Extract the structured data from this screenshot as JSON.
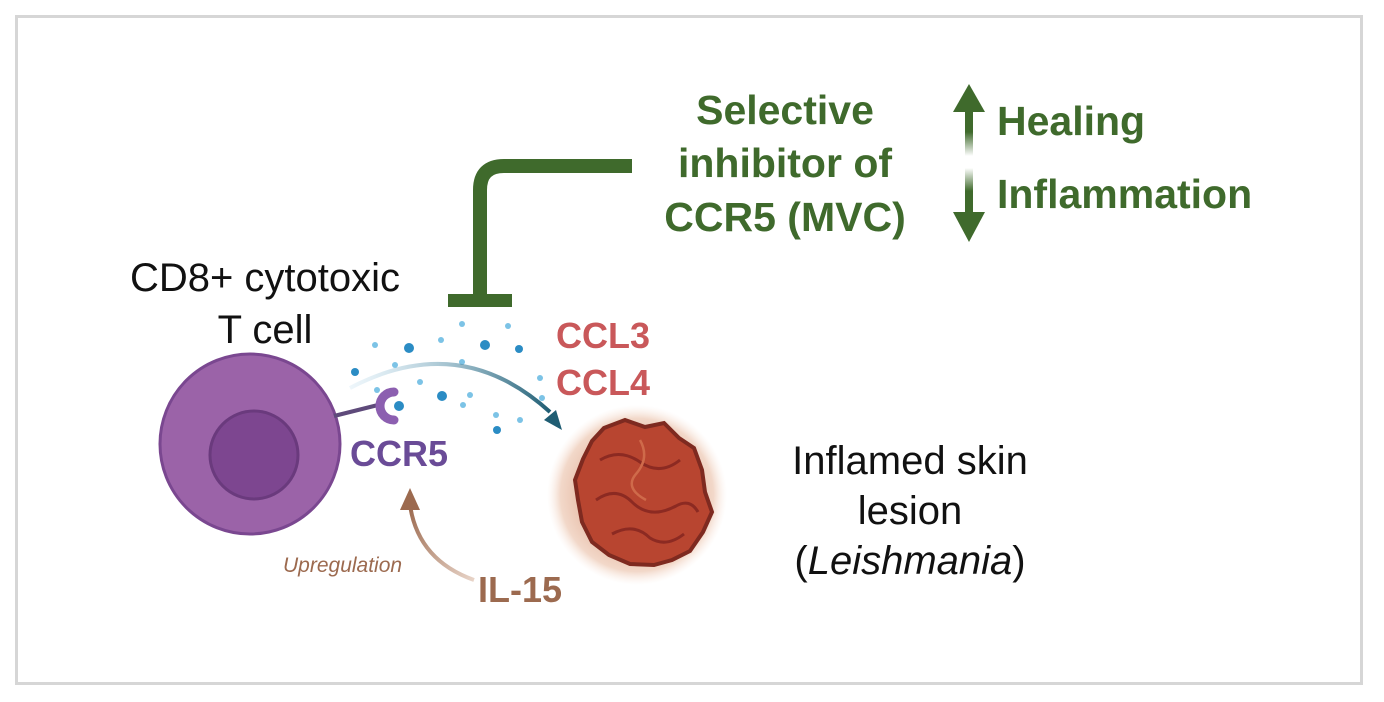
{
  "t_cell": {
    "line1": "CD8+ cytotoxic",
    "line2": "T cell"
  },
  "inhibitor": {
    "line1": "Selective",
    "line2": "inhibitor of",
    "line3": "CCR5 (MVC)"
  },
  "effects": {
    "up": "Healing",
    "down": "Inflammation"
  },
  "chemokines": {
    "ccl3": "CCL3",
    "ccl4": "CCL4"
  },
  "receptor": "CCR5",
  "upregulation": "Upregulation",
  "cytokine": "IL-15",
  "lesion": {
    "line1": "Inflamed skin",
    "line2": "lesion",
    "paren_open": "(",
    "organism": "Leishmania",
    "paren_close": ")"
  },
  "colors": {
    "green": "#3f6a2c",
    "cell_purple": "#9b63a8",
    "nucleus_purple": "#7d4690",
    "receptor_purple": "#6a4b97",
    "chemokine_red": "#c9585a",
    "brown": "#9c6a4f",
    "lesion_red": "#a8332b",
    "dot_blue": "#2b8cc4"
  }
}
